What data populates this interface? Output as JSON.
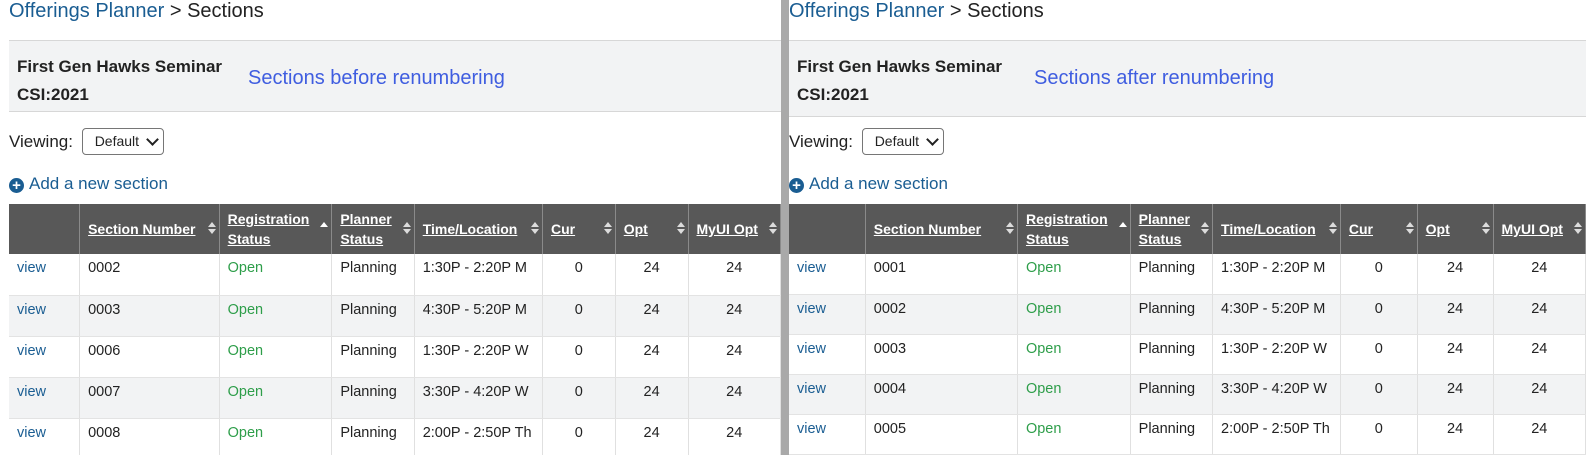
{
  "breadcrumb": {
    "root": "Offerings Planner",
    "separator": ">",
    "current": "Sections"
  },
  "course": {
    "title": "First Gen Hawks Seminar",
    "code": "CSI:2021"
  },
  "viewing": {
    "label": "Viewing:",
    "selected": "Default"
  },
  "add_section": {
    "label": "Add a new section"
  },
  "columns": {
    "section_number": "Section Number",
    "registration_status": "Registration Status",
    "planner_status": "Planner Status",
    "time_location": "Time/Location",
    "cur": "Cur",
    "opt": "Opt",
    "myui_opt": "MyUI Opt"
  },
  "colors": {
    "link": "#1a5d92",
    "open": "#2e9e4a",
    "note": "#3f5de0",
    "header_bg": "#585858"
  },
  "icons": {
    "add": "plus-circle-icon",
    "sort": "sort-arrows-icon"
  },
  "left": {
    "note": "Sections before renumbering",
    "rows": [
      {
        "link": "view",
        "section": "0002",
        "reg": "Open",
        "planner": "Planning",
        "time": "1:30P - 2:20P M",
        "cur": "0",
        "opt": "24",
        "myui": "24"
      },
      {
        "link": "view",
        "section": "0003",
        "reg": "Open",
        "planner": "Planning",
        "time": "4:30P - 5:20P M",
        "cur": "0",
        "opt": "24",
        "myui": "24"
      },
      {
        "link": "view",
        "section": "0006",
        "reg": "Open",
        "planner": "Planning",
        "time": "1:30P - 2:20P W",
        "cur": "0",
        "opt": "24",
        "myui": "24"
      },
      {
        "link": "view",
        "section": "0007",
        "reg": "Open",
        "planner": "Planning",
        "time": "3:30P - 4:20P W",
        "cur": "0",
        "opt": "24",
        "myui": "24"
      },
      {
        "link": "view",
        "section": "0008",
        "reg": "Open",
        "planner": "Planning",
        "time": "2:00P - 2:50P Th",
        "cur": "0",
        "opt": "24",
        "myui": "24"
      }
    ]
  },
  "right": {
    "note": "Sections after renumbering",
    "rows": [
      {
        "link": "view",
        "section": "0001",
        "reg": "Open",
        "planner": "Planning",
        "time": "1:30P - 2:20P M",
        "cur": "0",
        "opt": "24",
        "myui": "24"
      },
      {
        "link": "view",
        "section": "0002",
        "reg": "Open",
        "planner": "Planning",
        "time": "4:30P - 5:20P M",
        "cur": "0",
        "opt": "24",
        "myui": "24"
      },
      {
        "link": "view",
        "section": "0003",
        "reg": "Open",
        "planner": "Planning",
        "time": "1:30P - 2:20P W",
        "cur": "0",
        "opt": "24",
        "myui": "24"
      },
      {
        "link": "view",
        "section": "0004",
        "reg": "Open",
        "planner": "Planning",
        "time": "3:30P - 4:20P W",
        "cur": "0",
        "opt": "24",
        "myui": "24"
      },
      {
        "link": "view",
        "section": "0005",
        "reg": "Open",
        "planner": "Planning",
        "time": "2:00P - 2:50P Th",
        "cur": "0",
        "opt": "24",
        "myui": "24"
      }
    ]
  }
}
